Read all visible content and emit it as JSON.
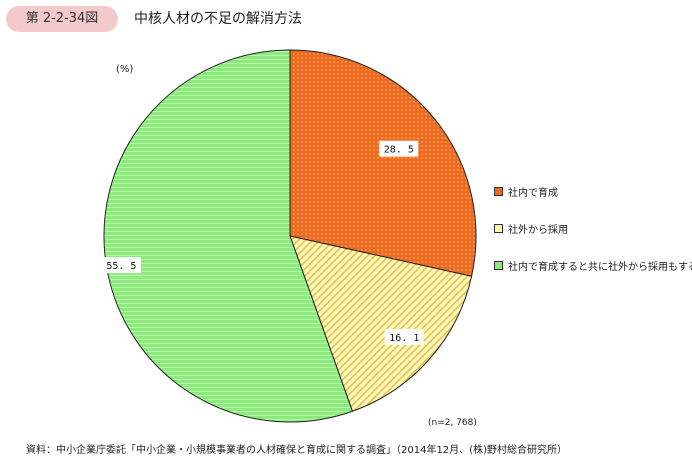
{
  "header": {
    "figure_number": "第 2-2-34図",
    "title": "中核人材の不足の解消方法"
  },
  "unit_label": "(%)",
  "sample_note": "(n=2, 768)",
  "source_note": "資料：中小企業庁委託「中小企業・小規模事業者の人材確保と育成に関する調査」（2014年12月、(株)野村総合研究所）",
  "colors": {
    "series_0": "#ee6a1c",
    "series_1": "#fff4a8",
    "series_2": "#8bec7c",
    "badge": "#f4c9cc"
  },
  "chart_data": {
    "type": "pie",
    "unit": "%",
    "start_angle_deg": 0,
    "direction": "clockwise",
    "slices": [
      {
        "label": "社内で育成",
        "value": 28.5,
        "value_label": "28. 5",
        "color": "#ee6a1c",
        "pattern": "dots"
      },
      {
        "label": "社外から採用",
        "value": 16.1,
        "value_label": "16. 1",
        "color": "#fff4a8",
        "pattern": "diagonal"
      },
      {
        "label": "社内で育成すると共に社外から採用もする",
        "value": 55.5,
        "value_label": "55. 5",
        "color": "#8bec7c",
        "pattern": "horizontal"
      }
    ],
    "legend_position": "right",
    "grid": false
  }
}
